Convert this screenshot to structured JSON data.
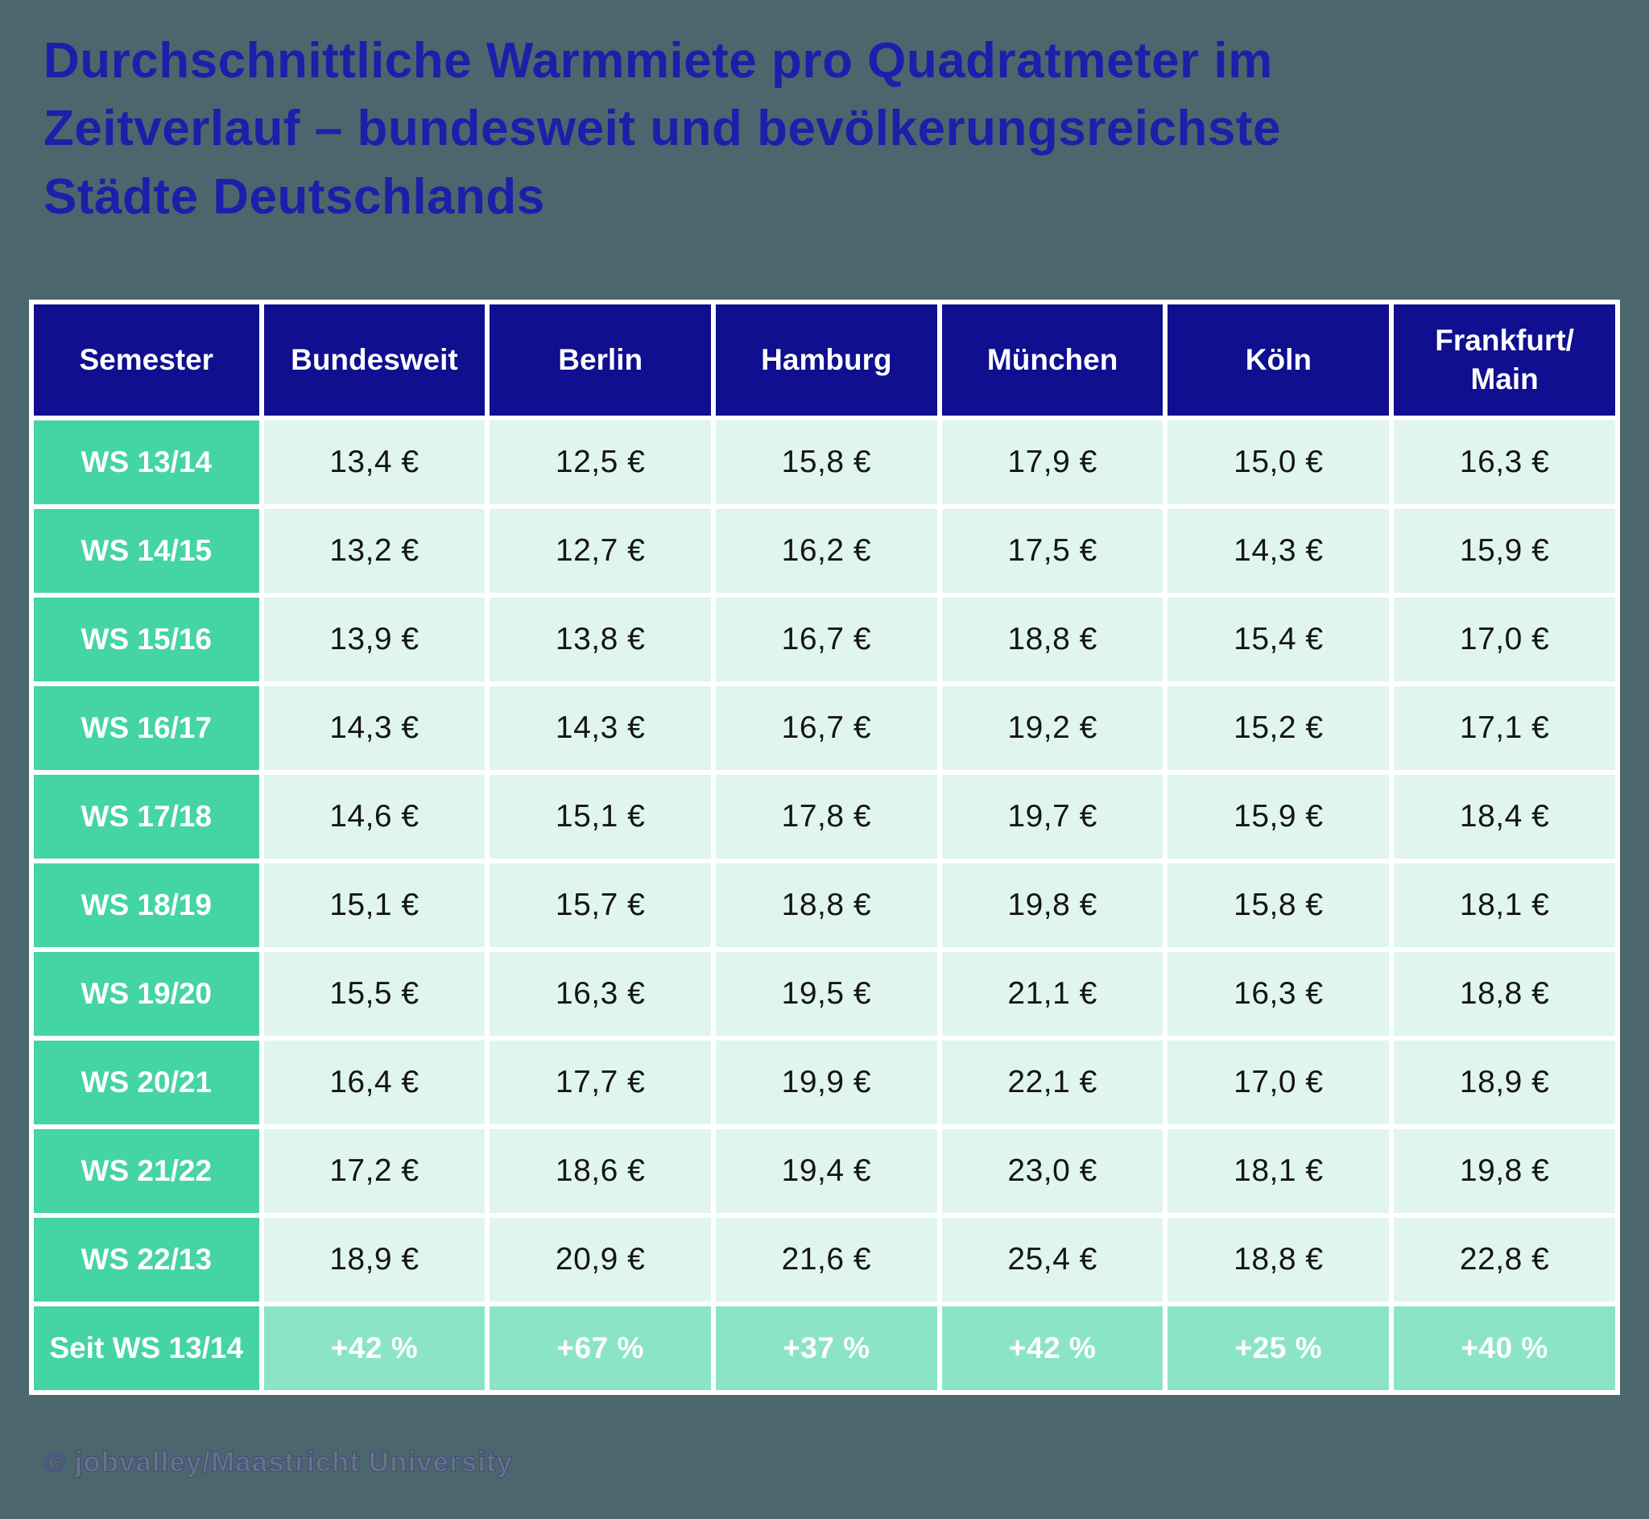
{
  "title": "Durchschnittliche Warmmiete pro Quadratmeter im\nZeitverlauf – bundesweit und bevölkerungsreichste\nStädte Deutschlands",
  "footer": "© jobvalley/Maastricht University",
  "colors": {
    "background": "#4c666d",
    "title_blue": "#1c1fa9",
    "header_navy": "#0f0f8f",
    "label_green": "#45d4a4",
    "cell_mint": "#e0f5ef",
    "summary_green": "#8ce4c6",
    "grid_white": "#ffffff"
  },
  "chart_data": {
    "type": "table",
    "title": "Durchschnittliche Warmmiete pro Quadratmeter im Zeitverlauf – bundesweit und bevölkerungsreichste Städte Deutschlands",
    "columns": [
      "Semester",
      "Bundesweit",
      "Berlin",
      "Hamburg",
      "München",
      "Köln",
      "Frankfurt/\nMain"
    ],
    "rows": [
      {
        "label": "WS 13/14",
        "values": [
          "13,4 €",
          "12,5 €",
          "15,8 €",
          "17,9 €",
          "15,0 €",
          "16,3 €"
        ]
      },
      {
        "label": "WS 14/15",
        "values": [
          "13,2 €",
          "12,7 €",
          "16,2 €",
          "17,5 €",
          "14,3 €",
          "15,9 €"
        ]
      },
      {
        "label": "WS 15/16",
        "values": [
          "13,9 €",
          "13,8 €",
          "16,7 €",
          "18,8 €",
          "15,4 €",
          "17,0 €"
        ]
      },
      {
        "label": "WS 16/17",
        "values": [
          "14,3 €",
          "14,3 €",
          "16,7 €",
          "19,2 €",
          "15,2 €",
          "17,1 €"
        ]
      },
      {
        "label": "WS 17/18",
        "values": [
          "14,6 €",
          "15,1 €",
          "17,8 €",
          "19,7 €",
          "15,9 €",
          "18,4 €"
        ]
      },
      {
        "label": "WS 18/19",
        "values": [
          "15,1 €",
          "15,7 €",
          "18,8 €",
          "19,8 €",
          "15,8 €",
          "18,1 €"
        ]
      },
      {
        "label": "WS 19/20",
        "values": [
          "15,5 €",
          "16,3 €",
          "19,5 €",
          "21,1 €",
          "16,3 €",
          "18,8 €"
        ]
      },
      {
        "label": "WS 20/21",
        "values": [
          "16,4 €",
          "17,7 €",
          "19,9 €",
          "22,1 €",
          "17,0 €",
          "18,9 €"
        ]
      },
      {
        "label": "WS 21/22",
        "values": [
          "17,2 €",
          "18,6 €",
          "19,4 €",
          "23,0 €",
          "18,1 €",
          "19,8 €"
        ]
      },
      {
        "label": "WS 22/13",
        "values": [
          "18,9 €",
          "20,9 €",
          "21,6 €",
          "25,4 €",
          "18,8 €",
          "22,8 €"
        ]
      }
    ],
    "summary": {
      "label": "Seit WS 13/14",
      "values": [
        "+42 %",
        "+67 %",
        "+37 %",
        "+42 %",
        "+25 %",
        "+40 %"
      ]
    }
  }
}
